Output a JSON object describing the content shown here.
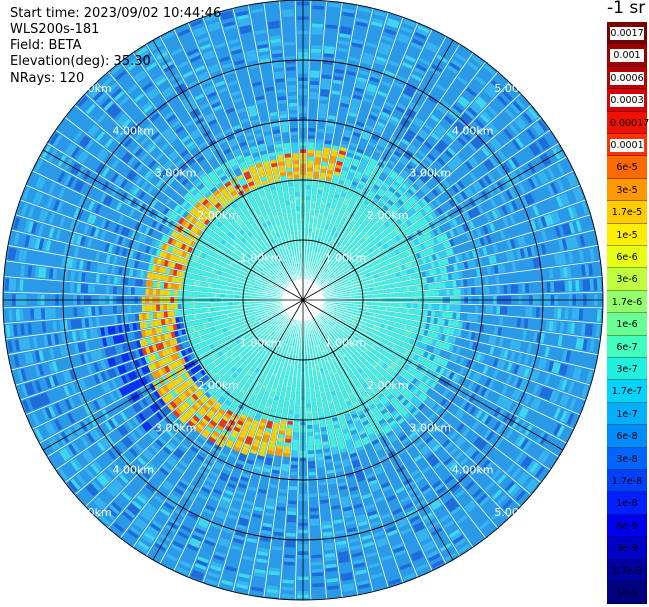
{
  "info": {
    "start_time": "Start time: 2023/09/02 10:44:46",
    "station": "WLS200s-181",
    "field": "Field: BETA",
    "elevation": "Elevation(deg): 35.30",
    "nrays": "NRays: 120"
  },
  "colorbar": {
    "title": "-1 sr",
    "levels": [
      {
        "label": "0.0017",
        "color": "#7a0000",
        "boxed": true
      },
      {
        "label": "0.001",
        "color": "#990000",
        "boxed": true
      },
      {
        "label": "0.0006",
        "color": "#b80000",
        "boxed": true
      },
      {
        "label": "0.0003",
        "color": "#d80000",
        "boxed": true
      },
      {
        "label": "0.00017",
        "color": "#f01000",
        "boxed": false
      },
      {
        "label": "0.0001",
        "color": "#ff3300",
        "boxed": true
      },
      {
        "label": "6e-5",
        "color": "#ff6a00",
        "boxed": false
      },
      {
        "label": "3e-5",
        "color": "#ff9900",
        "boxed": false
      },
      {
        "label": "1.7e-5",
        "color": "#ffcc00",
        "boxed": false
      },
      {
        "label": "1e-5",
        "color": "#ffee00",
        "boxed": false
      },
      {
        "label": "6e-6",
        "color": "#e6ff14",
        "boxed": false
      },
      {
        "label": "3e-6",
        "color": "#bfff3f",
        "boxed": false
      },
      {
        "label": "1.7e-6",
        "color": "#94ff6a",
        "boxed": false
      },
      {
        "label": "1e-6",
        "color": "#6aff94",
        "boxed": false
      },
      {
        "label": "6e-7",
        "color": "#40ffbf",
        "boxed": false
      },
      {
        "label": "3e-7",
        "color": "#1ff0e0",
        "boxed": false
      },
      {
        "label": "1.7e-7",
        "color": "#00d4ff",
        "boxed": false
      },
      {
        "label": "1e-7",
        "color": "#00b0ff",
        "boxed": false
      },
      {
        "label": "6e-8",
        "color": "#008cff",
        "boxed": false
      },
      {
        "label": "3e-8",
        "color": "#0066ff",
        "boxed": false
      },
      {
        "label": "1.7e-8",
        "color": "#0040ff",
        "boxed": false
      },
      {
        "label": "1e-8",
        "color": "#0020ff",
        "boxed": false
      },
      {
        "label": "6e-9",
        "color": "#0000f0",
        "boxed": false
      },
      {
        "label": "3e-9",
        "color": "#0000c8",
        "boxed": false
      },
      {
        "label": "1.7e-9",
        "color": "#0000a0",
        "boxed": false
      },
      {
        "label": "1e-9",
        "color": "#000080",
        "boxed": false
      }
    ]
  },
  "chart_data": {
    "type": "heatmap",
    "projection": "polar",
    "field": "BETA",
    "units": "sr-1",
    "nrays": 120,
    "range_rings_km": [
      1,
      2,
      3,
      4,
      5
    ],
    "ring_labels": [
      "1.00km",
      "2.00km",
      "3.00km",
      "4.00km",
      "5.00km"
    ],
    "max_range_km": 5.0,
    "spoke_angles_deg": [
      0,
      30,
      60,
      90,
      120,
      150,
      180,
      210,
      240,
      270,
      300,
      330
    ],
    "colors": {
      "near": "#44f0dc",
      "far": "#2a9ae8",
      "far_dark": "#1f6bdc",
      "west_sector": "#0a2ff0",
      "spots": [
        "#dddd22",
        "#ffcc00",
        "#ff9900",
        "#ee3311"
      ],
      "grid": "#000000",
      "ring_label": "#ffffff"
    },
    "aerosol_band": {
      "description": "enhanced backscatter arc on the west side of the scan",
      "inner_radius_km": 2.0,
      "outer_radius_km": 2.6,
      "start_azimuth_deg": 185,
      "end_azimuth_deg": 375,
      "peak_value": "0.0003",
      "typical_value": "3e-5"
    },
    "value_range": [
      "1e-9",
      "0.0017"
    ],
    "scale": "log"
  }
}
